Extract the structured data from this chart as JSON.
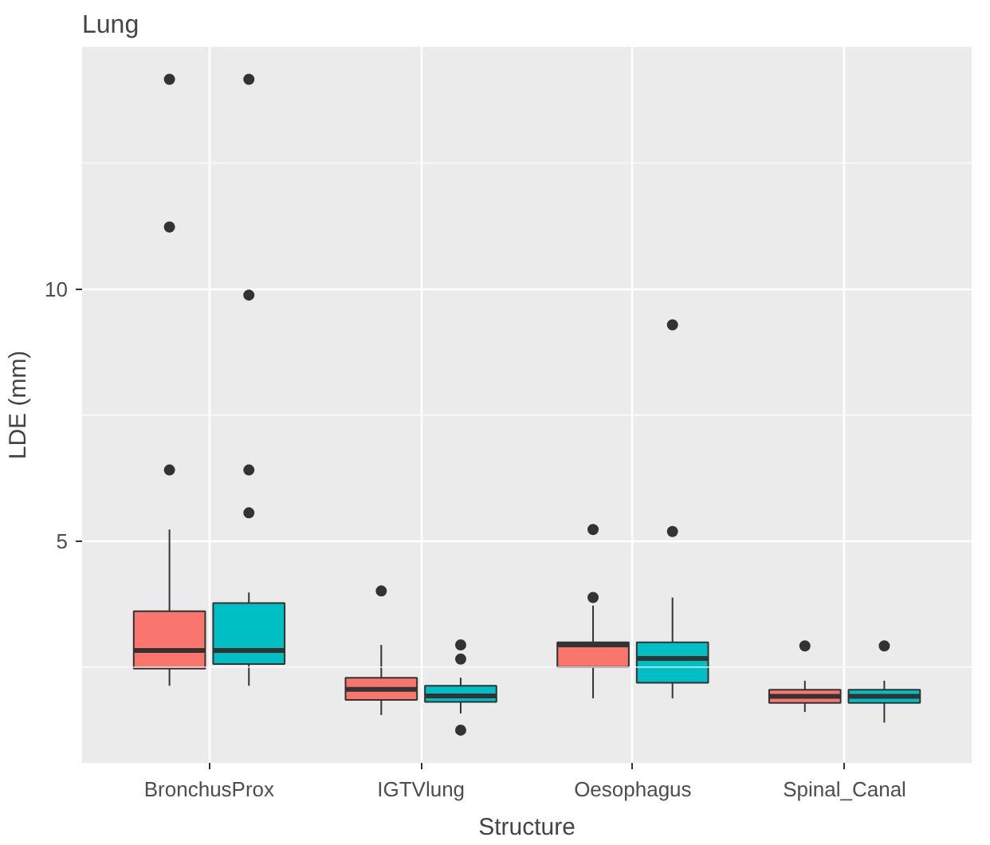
{
  "chart_data": {
    "type": "box",
    "title": "Lung",
    "xlabel": "Structure",
    "ylabel": "LDE (mm)",
    "categories": [
      "BronchusProx",
      "IGTVlung",
      "Oesophagus",
      "Spinal_Canal"
    ],
    "ylim": [
      0.6,
      14.8
    ],
    "yticks": [
      5,
      10
    ],
    "grid": true,
    "series": [
      {
        "color": "#f8766d",
        "boxes": [
          {
            "low": 2.13,
            "q1": 2.47,
            "median": 2.83,
            "q3": 3.61,
            "high": 5.23,
            "outliers": [
              14.16,
              11.23,
              6.41
            ]
          },
          {
            "low": 1.55,
            "q1": 1.85,
            "median": 2.06,
            "q3": 2.29,
            "high": 2.94,
            "outliers": [
              4.01
            ]
          },
          {
            "low": 1.88,
            "q1": 2.5,
            "median": 2.94,
            "q3": 2.99,
            "high": 3.72,
            "outliers": [
              3.88,
              5.23
            ]
          },
          {
            "low": 1.61,
            "q1": 1.79,
            "median": 1.92,
            "q3": 2.05,
            "high": 2.23,
            "outliers": [
              2.92
            ]
          }
        ]
      },
      {
        "color": "#00bfc4",
        "boxes": [
          {
            "low": 2.13,
            "q1": 2.56,
            "median": 2.83,
            "q3": 3.77,
            "high": 3.98,
            "outliers": [
              14.16,
              9.88,
              6.41,
              5.56
            ]
          },
          {
            "low": 1.58,
            "q1": 1.81,
            "median": 1.93,
            "q3": 2.13,
            "high": 2.29,
            "outliers": [
              2.94,
              2.66,
              1.25
            ]
          },
          {
            "low": 1.88,
            "q1": 2.19,
            "median": 2.67,
            "q3": 2.99,
            "high": 3.88,
            "outliers": [
              9.29,
              5.19
            ]
          },
          {
            "low": 1.4,
            "q1": 1.79,
            "median": 1.92,
            "q3": 2.05,
            "high": 2.23,
            "outliers": [
              2.92
            ]
          }
        ]
      }
    ]
  }
}
